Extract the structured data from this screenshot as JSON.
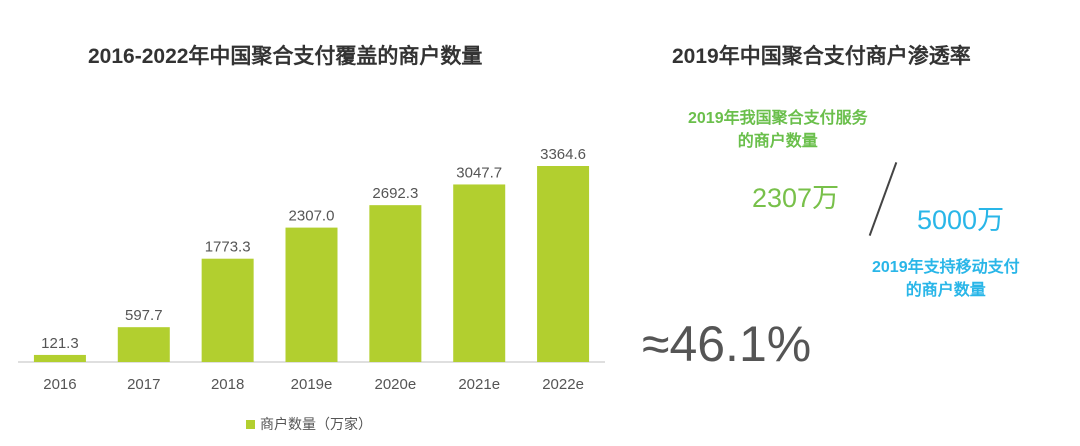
{
  "left_panel": {
    "title": "2016-2022年中国聚合支付覆盖的商户数量"
  },
  "right_panel": {
    "title": "2019年中国聚合支付商户渗透率",
    "aggregate_label_line1": "2019年我国聚合支付服务",
    "aggregate_label_line2": "的商户数量",
    "aggregate_value": "2307万",
    "mobile_label_line1": "2019年支持移动支付",
    "mobile_label_line2": "的商户数量",
    "mobile_value": "5000万",
    "penetration": "≈46.1%"
  },
  "colors": {
    "bar": "#b2cf2f",
    "green_text": "#6abf4b",
    "blue_text": "#29b6e8"
  },
  "chart_data": {
    "type": "bar",
    "title": "2016-2022年中国聚合支付覆盖的商户数量",
    "categories": [
      "2016",
      "2017",
      "2018",
      "2019e",
      "2020e",
      "2021e",
      "2022e"
    ],
    "series": [
      {
        "name": "商户数量（万家）",
        "values": [
          121.3,
          597.7,
          1773.3,
          2307.0,
          2692.3,
          3047.7,
          3364.6
        ]
      }
    ],
    "data_labels": [
      "121.3",
      "597.7",
      "1773.3",
      "2307.0",
      "2692.3",
      "3047.7",
      "3364.6"
    ],
    "ylim": [
      0,
      3364.6
    ],
    "grid": false,
    "legend_position": "bottom"
  }
}
